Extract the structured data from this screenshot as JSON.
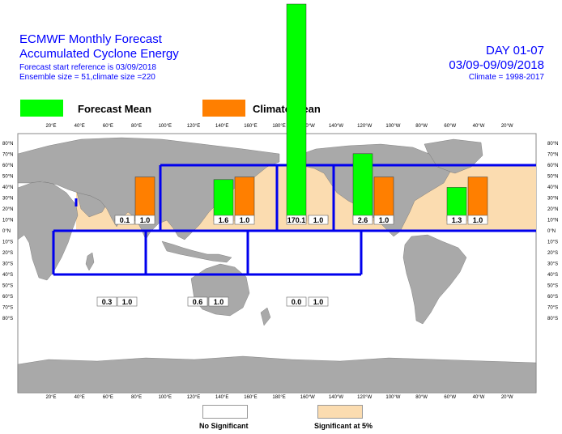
{
  "header": {
    "title_line1": "ECMWF Monthly Forecast",
    "title_line2": "Accumulated Cyclone Energy",
    "start_ref": "Forecast start reference is 03/09/2018",
    "ensemble": "Ensemble size = 51,climate size =220",
    "day": "DAY 01-07",
    "date_range": "03/09-09/09/2018",
    "climate": "Climate = 1998-2017"
  },
  "legend": {
    "forecast_label": "Forecast Mean",
    "climate_label": "Climate Mean",
    "forecast_color": "#00ff00",
    "climate_color": "#ff7f00"
  },
  "footer": {
    "no_sig_label": "No Significant",
    "sig_label": "Significant at 5%",
    "no_sig_color": "#ffffff",
    "sig_color": "#fbdcb0"
  },
  "chart_data": {
    "type": "bar",
    "x_ticks": [
      "20°E",
      "40°E",
      "60°E",
      "80°E",
      "100°E",
      "120°E",
      "140°E",
      "160°E",
      "180°E",
      "160°W",
      "140°W",
      "120°W",
      "100°W",
      "80°W",
      "60°W",
      "40°W",
      "20°W"
    ],
    "y_ticks": [
      "80°N",
      "70°N",
      "60°N",
      "50°N",
      "40°N",
      "30°N",
      "20°N",
      "10°N",
      "0°N",
      "10°S",
      "20°S",
      "30°S",
      "40°S",
      "50°S",
      "60°S",
      "70°S",
      "80°S"
    ],
    "series": [
      {
        "name": "Forecast Mean",
        "color": "#00ff00"
      },
      {
        "name": "Climate Mean",
        "color": "#ff7f00"
      }
    ],
    "basins": [
      {
        "id": "north-indian",
        "forecast": 0.1,
        "climate": 1.0,
        "forecast_label": "0.1",
        "climate_label": "1.0",
        "significant": true
      },
      {
        "id": "western-north-pacific",
        "forecast": 1.6,
        "climate": 1.0,
        "forecast_label": "1.6",
        "climate_label": "1.0",
        "significant": true
      },
      {
        "id": "central-north-pacific",
        "forecast": 170.1,
        "climate": 1.0,
        "forecast_label": "170.1",
        "climate_label": "1.0",
        "significant": true
      },
      {
        "id": "eastern-north-pacific",
        "forecast": 2.6,
        "climate": 1.0,
        "forecast_label": "2.6",
        "climate_label": "1.0",
        "significant": true
      },
      {
        "id": "north-atlantic",
        "forecast": 1.3,
        "climate": 1.0,
        "forecast_label": "1.3",
        "climate_label": "1.0",
        "significant": true
      },
      {
        "id": "south-indian",
        "forecast": 0.3,
        "climate": 1.0,
        "forecast_label": "0.3",
        "climate_label": "1.0",
        "significant": false
      },
      {
        "id": "australian",
        "forecast": 0.6,
        "climate": 1.0,
        "forecast_label": "0.6",
        "climate_label": "1.0",
        "significant": false
      },
      {
        "id": "south-pacific",
        "forecast": 0.0,
        "climate": 1.0,
        "forecast_label": "0.0",
        "climate_label": "1.0",
        "significant": false
      }
    ]
  }
}
